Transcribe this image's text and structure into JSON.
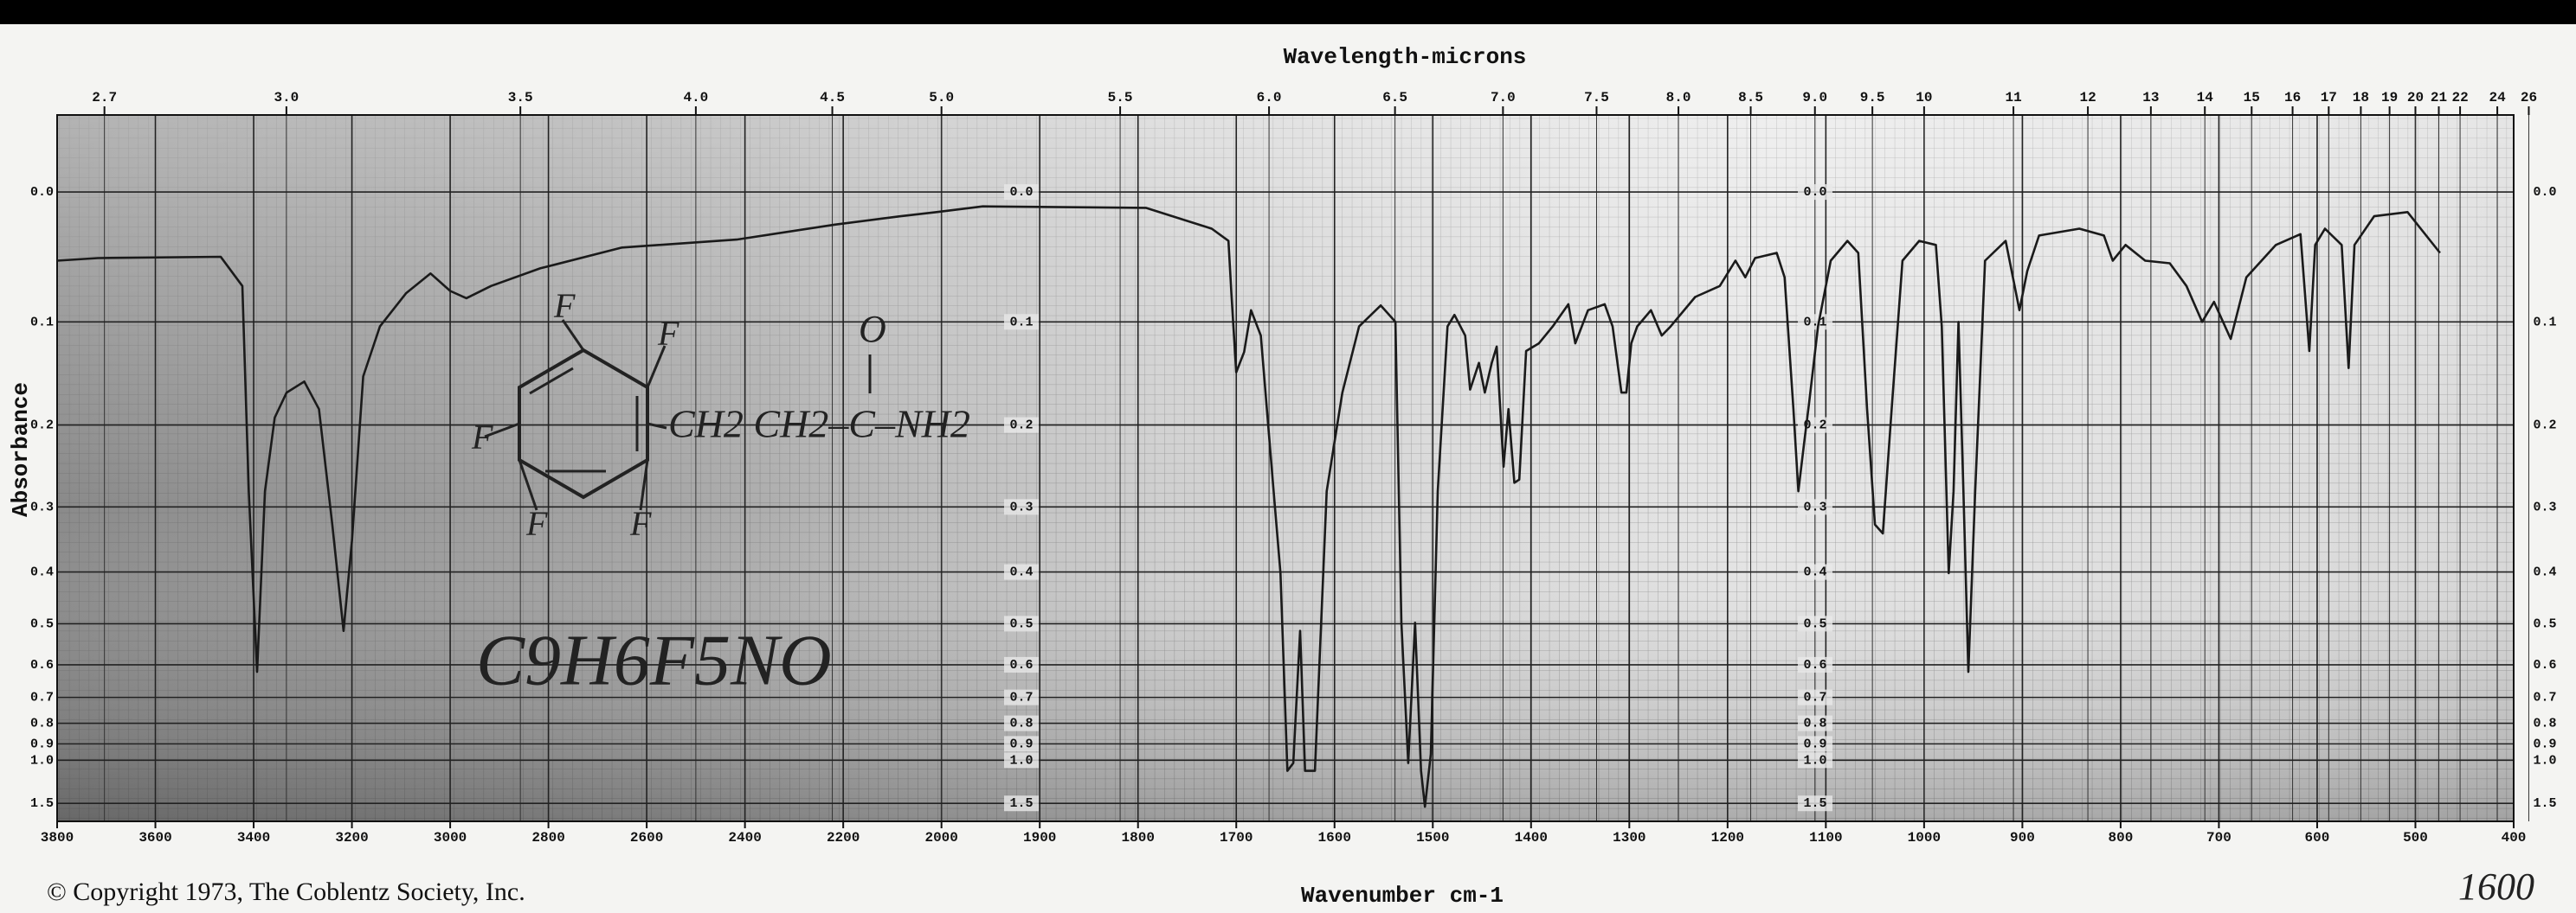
{
  "chart_data": {
    "type": "line",
    "title": "Wavelength-microns",
    "xlabel": "Wavenumber cm-1",
    "ylabel": "Absorbance",
    "copyright": "© Copyright 1973, The Coblentz Society, Inc.",
    "corner_note": "1600",
    "annotations": [
      "C9H6F5NO",
      "CH2 CH2–C–NH2",
      "O",
      "F",
      "F",
      "F",
      "F",
      "F"
    ],
    "color": "#1a1a1a",
    "grid": true,
    "xlim": [
      3800,
      400
    ],
    "xbreak": 2000,
    "yscale": "transmittance",
    "ylim": [
      -0.05,
      2.5
    ],
    "xticks": [
      3800,
      3600,
      3400,
      3200,
      3000,
      2800,
      2600,
      2400,
      2200,
      2000,
      1900,
      1800,
      1700,
      1600,
      1500,
      1400,
      1300,
      1200,
      1100,
      1000,
      900,
      800,
      700,
      600,
      500,
      400
    ],
    "x2ticks": [
      2.7,
      {
        "value": 3,
        "label": "3.0"
      },
      3.5,
      {
        "value": 4,
        "label": "4.0"
      },
      4.5,
      {
        "value": 5,
        "label": "5.0"
      },
      5.5,
      {
        "value": 6,
        "label": "6.0"
      },
      6.5,
      {
        "value": 7,
        "label": "7.0"
      },
      7.5,
      {
        "value": 8,
        "label": "8.0"
      },
      8.5,
      {
        "value": 9,
        "label": "9.0"
      },
      9.5,
      10,
      11,
      12,
      13,
      14,
      15,
      16,
      17,
      18,
      19,
      20,
      21,
      22,
      24,
      26
    ],
    "yticks": [
      {
        "value": 0,
        "label": "0.0"
      },
      0.1,
      0.2,
      0.3,
      0.4,
      0.5,
      0.6,
      0.7,
      0.8,
      0.9,
      {
        "value": 1,
        "label": "1.0"
      },
      1.5
    ],
    "x": [
      3800,
      3717,
      3467,
      3423,
      3410,
      3393,
      3377,
      3357,
      3333,
      3297,
      3267,
      3240,
      3217,
      3200,
      3177,
      3143,
      3090,
      3040,
      3000,
      2967,
      2917,
      2817,
      2650,
      2417,
      2217,
      2083,
      2010,
      1958,
      1792,
      1725,
      1708,
      1705,
      1700,
      1692,
      1685,
      1675,
      1662,
      1655,
      1648,
      1642,
      1635,
      1630,
      1620,
      1608,
      1592,
      1575,
      1553,
      1538,
      1532,
      1525,
      1518,
      1512,
      1508,
      1502,
      1495,
      1485,
      1478,
      1467,
      1462,
      1453,
      1447,
      1440,
      1435,
      1428,
      1423,
      1417,
      1412,
      1405,
      1392,
      1378,
      1362,
      1355,
      1342,
      1325,
      1317,
      1308,
      1303,
      1298,
      1292,
      1278,
      1267,
      1258,
      1233,
      1208,
      1192,
      1182,
      1172,
      1150,
      1142,
      1133,
      1128,
      1122,
      1117,
      1108,
      1095,
      1078,
      1067,
      1058,
      1050,
      1042,
      1033,
      1022,
      1005,
      988,
      982,
      975,
      970,
      965,
      960,
      955,
      948,
      938,
      917,
      903,
      895,
      883,
      842,
      817,
      808,
      795,
      775,
      750,
      733,
      717,
      705,
      688,
      672,
      642,
      617,
      608,
      602,
      592,
      575,
      568,
      562,
      542,
      508,
      475
    ],
    "values": [
      0.05,
      0.048,
      0.047,
      0.07,
      0.279,
      0.62,
      0.279,
      0.192,
      0.166,
      0.155,
      0.183,
      0.325,
      0.516,
      0.349,
      0.15,
      0.104,
      0.076,
      0.06,
      0.074,
      0.08,
      0.07,
      0.056,
      0.04,
      0.034,
      0.023,
      0.017,
      0.014,
      0.01,
      0.011,
      0.026,
      0.035,
      0.076,
      0.146,
      0.127,
      0.09,
      0.112,
      0.279,
      0.402,
      1.08,
      1.02,
      0.516,
      1.08,
      1.08,
      0.279,
      0.166,
      0.104,
      0.086,
      0.1,
      0.498,
      1.02,
      0.498,
      1.08,
      1.58,
      0.96,
      0.279,
      0.104,
      0.094,
      0.112,
      0.163,
      0.137,
      0.166,
      0.137,
      0.122,
      0.248,
      0.183,
      0.268,
      0.264,
      0.126,
      0.119,
      0.104,
      0.085,
      0.119,
      0.09,
      0.085,
      0.104,
      0.166,
      0.166,
      0.119,
      0.104,
      0.09,
      0.112,
      0.104,
      0.079,
      0.07,
      0.05,
      0.063,
      0.048,
      0.044,
      0.063,
      0.183,
      0.279,
      0.219,
      0.176,
      0.104,
      0.05,
      0.035,
      0.044,
      0.183,
      0.325,
      0.338,
      0.183,
      0.05,
      0.035,
      0.038,
      0.104,
      0.402,
      0.279,
      0.1,
      0.279,
      0.62,
      0.279,
      0.05,
      0.035,
      0.09,
      0.058,
      0.031,
      0.026,
      0.031,
      0.05,
      0.038,
      0.05,
      0.052,
      0.07,
      0.1,
      0.083,
      0.115,
      0.063,
      0.038,
      0.03,
      0.126,
      0.038,
      0.026,
      0.038,
      0.142,
      0.038,
      0.017,
      0.014,
      0.044
    ]
  }
}
